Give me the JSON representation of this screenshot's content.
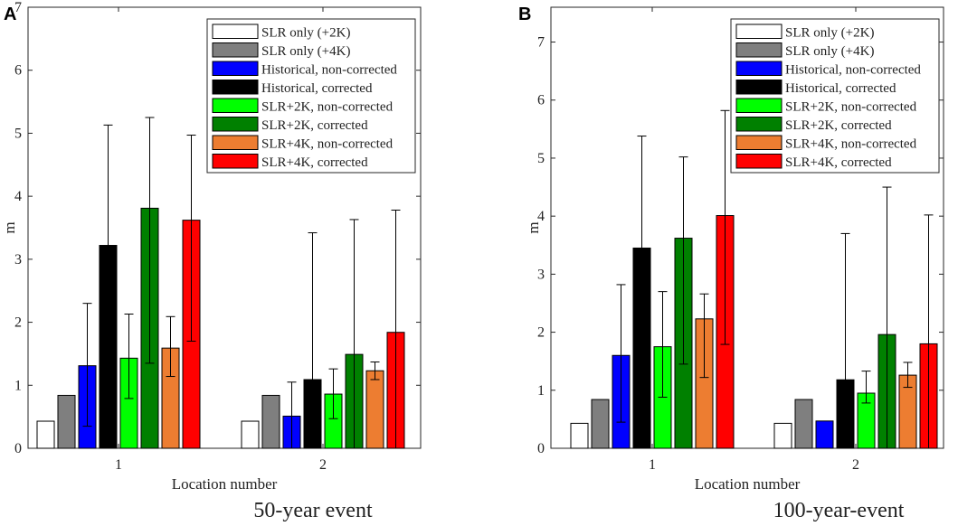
{
  "chart_data": [
    {
      "type": "bar",
      "panel": "A",
      "subtitle": "50-year event",
      "xlabel": "Location number",
      "ylabel": "m",
      "ylim": [
        0,
        7
      ],
      "yticks": [
        "0",
        "1",
        "2",
        "3",
        "4",
        "5",
        "6",
        "7"
      ],
      "categories": [
        "1",
        "2"
      ],
      "legend_position": "top-right",
      "series": [
        {
          "name": "SLR only (+2K)",
          "color": "#ffffff",
          "values": [
            0.43,
            0.43
          ],
          "err_low": [
            null,
            null
          ],
          "err_high": [
            null,
            null
          ]
        },
        {
          "name": "SLR only (+4K)",
          "color": "#7f7f7f",
          "values": [
            0.84,
            0.84
          ],
          "err_low": [
            null,
            null
          ],
          "err_high": [
            null,
            null
          ]
        },
        {
          "name": "Historical, non-corrected",
          "color": "#0000ff",
          "values": [
            1.31,
            0.51
          ],
          "err_low": [
            0.35,
            0.0
          ],
          "err_high": [
            2.3,
            1.05
          ]
        },
        {
          "name": "Historical, corrected",
          "color": "#000000",
          "values": [
            3.22,
            1.09
          ],
          "err_low": [
            1.4,
            0.0
          ],
          "err_high": [
            5.13,
            3.42
          ]
        },
        {
          "name": "SLR+2K, non-corrected",
          "color": "#00ff00",
          "values": [
            1.43,
            0.86
          ],
          "err_low": [
            0.79,
            0.47
          ],
          "err_high": [
            2.13,
            1.26
          ]
        },
        {
          "name": "SLR+2K, corrected",
          "color": "#008000",
          "values": [
            3.81,
            1.49
          ],
          "err_low": [
            1.35,
            0.0
          ],
          "err_high": [
            5.25,
            3.63
          ]
        },
        {
          "name": "SLR+4K, non-corrected",
          "color": "#ed7d31",
          "values": [
            1.59,
            1.23
          ],
          "err_low": [
            1.14,
            1.09
          ],
          "err_high": [
            2.09,
            1.37
          ]
        },
        {
          "name": "SLR+4K, corrected",
          "color": "#ff0000",
          "values": [
            3.62,
            1.84
          ],
          "err_low": [
            1.7,
            0.0
          ],
          "err_high": [
            4.97,
            3.78
          ]
        }
      ]
    },
    {
      "type": "bar",
      "panel": "B",
      "subtitle": "100-year-event",
      "xlabel": "Location number",
      "ylabel": "m",
      "ylim": [
        0,
        7.6
      ],
      "yticks": [
        "0",
        "1",
        "2",
        "3",
        "4",
        "5",
        "6",
        "7"
      ],
      "categories": [
        "1",
        "2"
      ],
      "legend_position": "top-right",
      "series": [
        {
          "name": "SLR only (+2K)",
          "color": "#ffffff",
          "values": [
            0.43,
            0.43
          ],
          "err_low": [
            null,
            null
          ],
          "err_high": [
            null,
            null
          ]
        },
        {
          "name": "SLR only (+4K)",
          "color": "#7f7f7f",
          "values": [
            0.84,
            0.84
          ],
          "err_low": [
            null,
            null
          ],
          "err_high": [
            null,
            null
          ]
        },
        {
          "name": "Historical, non-corrected",
          "color": "#0000ff",
          "values": [
            1.6,
            0.47
          ],
          "err_low": [
            0.45,
            0.0
          ],
          "err_high": [
            2.82,
            0.0
          ]
        },
        {
          "name": "Historical, corrected",
          "color": "#000000",
          "values": [
            3.45,
            1.18
          ],
          "err_low": [
            1.5,
            0.0
          ],
          "err_high": [
            5.38,
            3.7
          ]
        },
        {
          "name": "SLR+2K, non-corrected",
          "color": "#00ff00",
          "values": [
            1.75,
            0.95
          ],
          "err_low": [
            0.88,
            0.78
          ],
          "err_high": [
            2.7,
            1.33
          ]
        },
        {
          "name": "SLR+2K, corrected",
          "color": "#008000",
          "values": [
            3.62,
            1.96
          ],
          "err_low": [
            1.45,
            0.0
          ],
          "err_high": [
            5.02,
            4.5
          ]
        },
        {
          "name": "SLR+4K, non-corrected",
          "color": "#ed7d31",
          "values": [
            2.23,
            1.26
          ],
          "err_low": [
            1.22,
            1.05
          ],
          "err_high": [
            2.66,
            1.48
          ]
        },
        {
          "name": "SLR+4K, corrected",
          "color": "#ff0000",
          "values": [
            4.01,
            1.8
          ],
          "err_low": [
            1.79,
            0.0
          ],
          "err_high": [
            5.82,
            4.02
          ]
        }
      ]
    }
  ]
}
